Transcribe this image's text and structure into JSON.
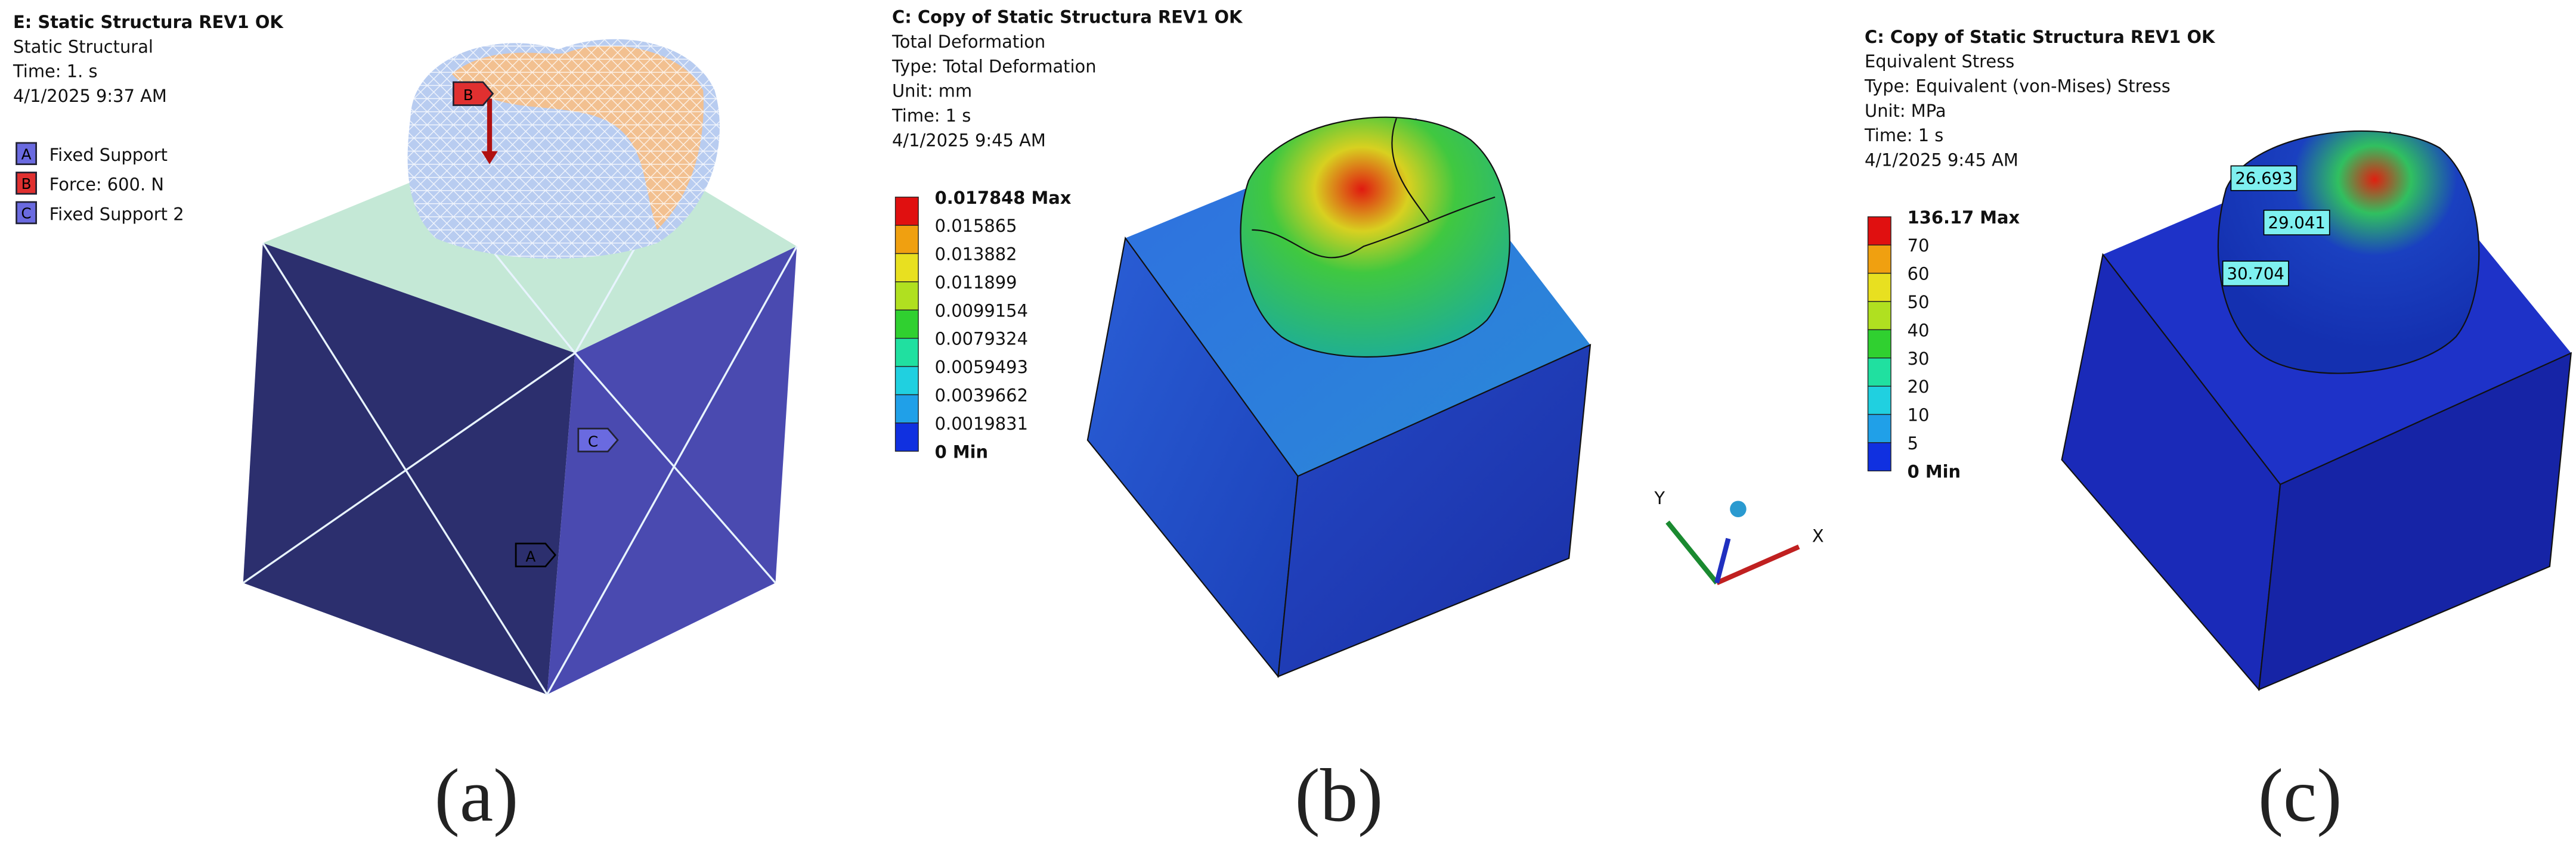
{
  "panels": [
    {
      "caption": "(a)",
      "header": [
        "E: Static Structura REV1 OK",
        "Static Structural",
        "Time: 1. s",
        "4/1/2025 9:37 AM"
      ],
      "legend": [
        {
          "key": "A",
          "label": "Fixed Support"
        },
        {
          "key": "B",
          "label": "Force: 600. N"
        },
        {
          "key": "C",
          "label": "Fixed Support 2"
        }
      ],
      "markers": [
        "B",
        "C",
        "A"
      ]
    },
    {
      "caption": "(b)",
      "header": [
        "C: Copy of Static Structura REV1 OK",
        "Total Deformation",
        "Type: Total Deformation",
        "Unit: mm",
        "Time: 1 s",
        "4/1/2025 9:45 AM"
      ],
      "scale": [
        "0.017848 Max",
        "0.015865",
        "0.013882",
        "0.011899",
        "0.0099154",
        "0.0079324",
        "0.0059493",
        "0.0039662",
        "0.0019831",
        "0 Min"
      ]
    },
    {
      "caption": "(c)",
      "header": [
        "C: Copy of Static Structura REV1 OK",
        "Equivalent Stress",
        "Type: Equivalent (von-Mises) Stress",
        "Unit: MPa",
        "Time: 1 s",
        "4/1/2025 9:45 AM"
      ],
      "scale": [
        "136.17 Max",
        "70",
        "60",
        "50",
        "40",
        "30",
        "20",
        "10",
        "5",
        "0 Min"
      ],
      "probes": [
        "26.693",
        "29.041",
        "30.704"
      ]
    }
  ],
  "triad": {
    "y": "Y",
    "x": "X"
  }
}
